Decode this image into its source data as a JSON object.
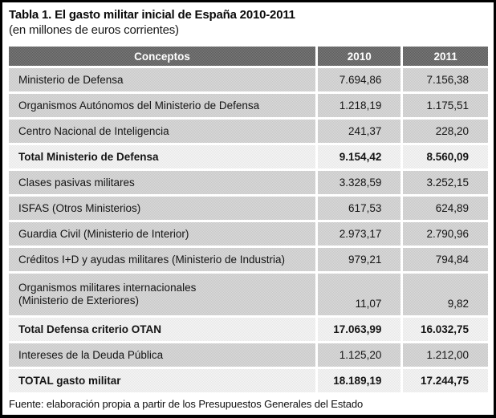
{
  "title": "Tabla 1. El gasto militar inicial de España 2010-2011",
  "subtitle": "(en millones de euros corrientes)",
  "table": {
    "columns": [
      "Conceptos",
      "2010",
      "2011"
    ],
    "rows": [
      {
        "concept": "Ministerio de Defensa",
        "y2010": "7.694,86",
        "y2011": "7.156,38",
        "total": false,
        "tall": false
      },
      {
        "concept": "Organismos Autónomos del Ministerio de Defensa",
        "y2010": "1.218,19",
        "y2011": "1.175,51",
        "total": false,
        "tall": false
      },
      {
        "concept": "Centro Nacional de Inteligencia",
        "y2010": "241,37",
        "y2011": "228,20",
        "total": false,
        "tall": false
      },
      {
        "concept": "Total Ministerio de Defensa",
        "y2010": "9.154,42",
        "y2011": "8.560,09",
        "total": true,
        "tall": false
      },
      {
        "concept": "Clases pasivas militares",
        "y2010": "3.328,59",
        "y2011": "3.252,15",
        "total": false,
        "tall": false
      },
      {
        "concept": "ISFAS (Otros Ministerios)",
        "y2010": "617,53",
        "y2011": "624,89",
        "total": false,
        "tall": false
      },
      {
        "concept": "Guardia Civil (Ministerio de Interior)",
        "y2010": "2.973,17",
        "y2011": "2.790,96",
        "total": false,
        "tall": false
      },
      {
        "concept": "Créditos I+D y ayudas militares (Ministerio de Industria)",
        "y2010": "979,21",
        "y2011": "794,84",
        "total": false,
        "tall": false
      },
      {
        "concept": "Organismos militares internacionales\n(Ministerio de Exteriores)",
        "y2010": "11,07",
        "y2011": "9,82",
        "total": false,
        "tall": true
      },
      {
        "concept": "Total Defensa criterio OTAN",
        "y2010": "17.063,99",
        "y2011": "16.032,75",
        "total": true,
        "tall": false
      },
      {
        "concept": "Intereses de la Deuda Pública",
        "y2010": "1.125,20",
        "y2011": "1.212,00",
        "total": false,
        "tall": false
      },
      {
        "concept": "TOTAL gasto militar",
        "y2010": "18.189,19",
        "y2011": "17.244,75",
        "total": true,
        "tall": false
      }
    ]
  },
  "footer": "Fuente: elaboración propia a partir de los Presupuestos Generales del Estado",
  "colors": {
    "header_bg": "#686868",
    "header_text": "#ffffff",
    "row_bg": "#d2d2d2",
    "total_row_bg": "#efefef",
    "body_text": "#141414",
    "border": "#000000"
  }
}
